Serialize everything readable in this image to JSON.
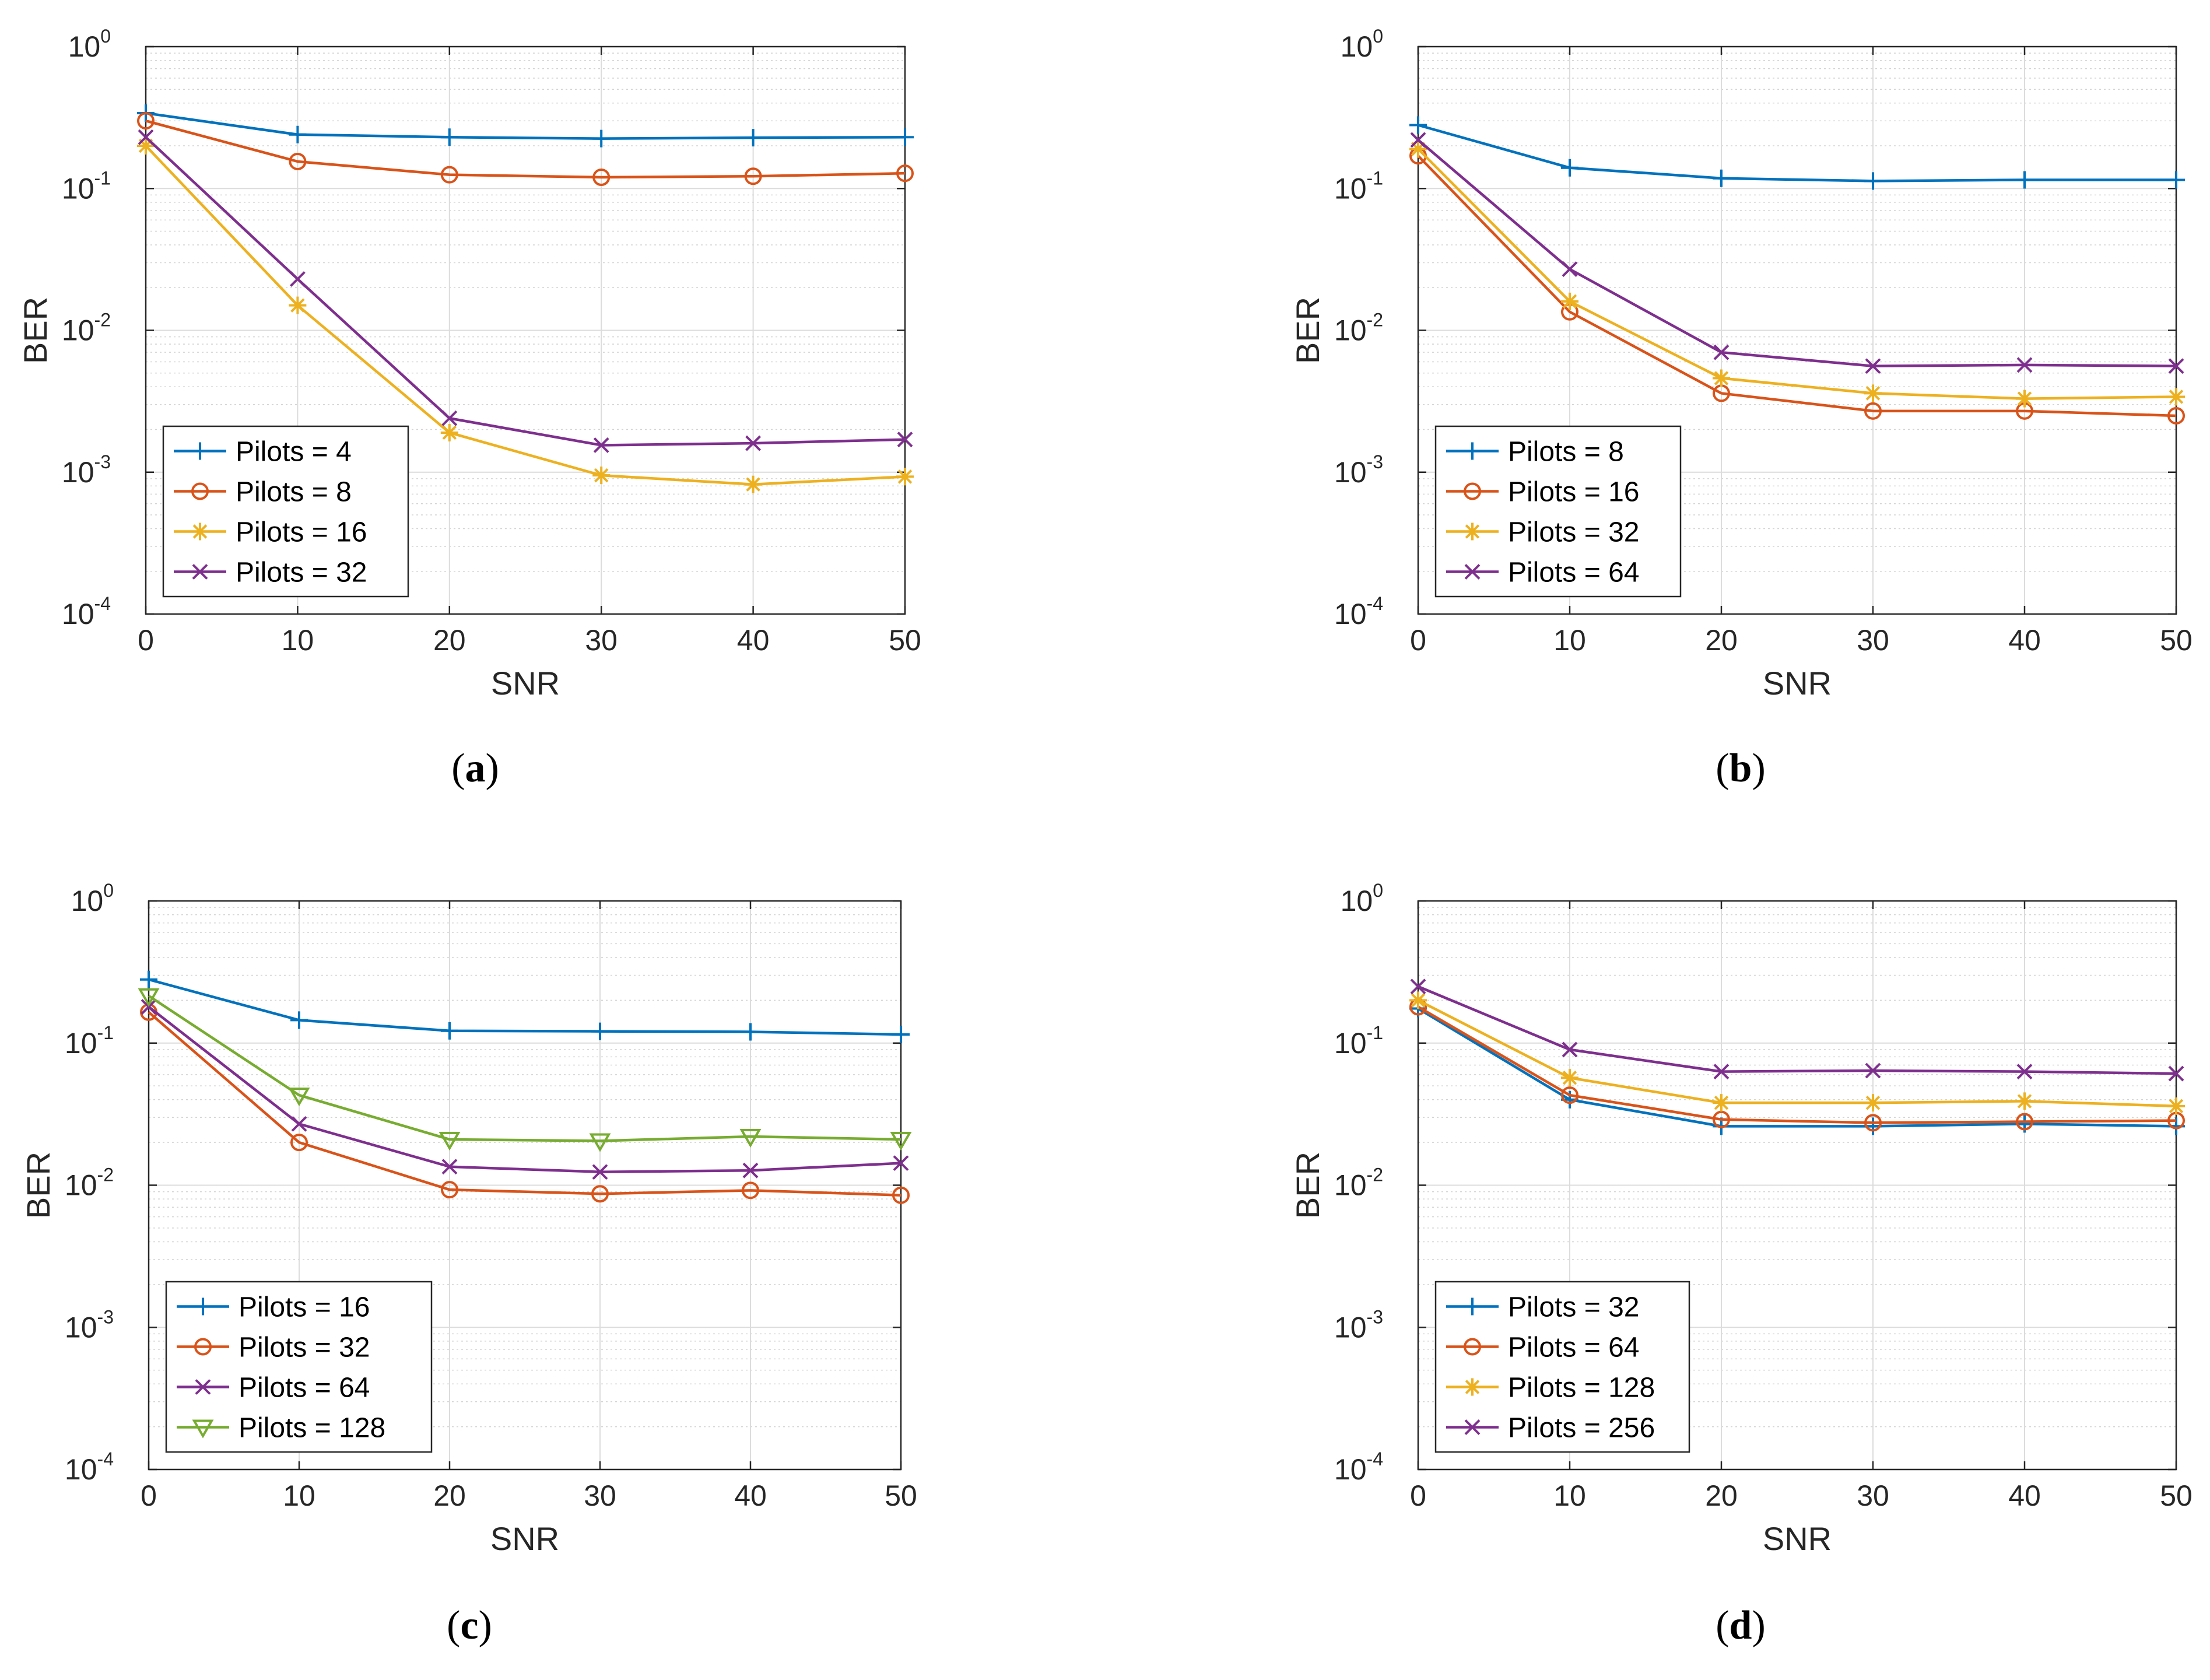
{
  "chart_data": [
    {
      "type": "line",
      "caption": "a",
      "xlabel": "SNR",
      "ylabel": "BER",
      "xlim": [
        0,
        50
      ],
      "ylim": [
        0.0001,
        1
      ],
      "yscale": "log",
      "grid": true,
      "legend_position": "bottom-left",
      "x": [
        0,
        10,
        20,
        30,
        40,
        50
      ],
      "x_ticks": [
        "0",
        "10",
        "20",
        "30",
        "40",
        "50"
      ],
      "y_ticks": [
        {
          "base": "10",
          "exp": "0"
        },
        {
          "base": "10",
          "exp": "-1"
        },
        {
          "base": "10",
          "exp": "-2"
        },
        {
          "base": "10",
          "exp": "-3"
        },
        {
          "base": "10",
          "exp": "-4"
        }
      ],
      "series": [
        {
          "name": "Pilots = 4",
          "color": "#0072BD",
          "marker": "plus",
          "values": [
            0.34,
            0.24,
            0.23,
            0.225,
            0.228,
            0.23
          ]
        },
        {
          "name": "Pilots = 8",
          "color": "#D95319",
          "marker": "circle",
          "values": [
            0.3,
            0.155,
            0.125,
            0.12,
            0.122,
            0.128
          ]
        },
        {
          "name": "Pilots = 16",
          "color": "#EDB120",
          "marker": "asterisk",
          "values": [
            0.2,
            0.015,
            0.0019,
            0.00095,
            0.00082,
            0.00093
          ]
        },
        {
          "name": "Pilots = 32",
          "color": "#7E2F8E",
          "marker": "cross",
          "values": [
            0.23,
            0.023,
            0.0024,
            0.00155,
            0.0016,
            0.0017
          ]
        }
      ]
    },
    {
      "type": "line",
      "caption": "b",
      "xlabel": "SNR",
      "ylabel": "BER",
      "xlim": [
        0,
        50
      ],
      "ylim": [
        0.0001,
        1
      ],
      "yscale": "log",
      "grid": true,
      "legend_position": "bottom-left",
      "x": [
        0,
        10,
        20,
        30,
        40,
        50
      ],
      "x_ticks": [
        "0",
        "10",
        "20",
        "30",
        "40",
        "50"
      ],
      "y_ticks": [
        {
          "base": "10",
          "exp": "0"
        },
        {
          "base": "10",
          "exp": "-1"
        },
        {
          "base": "10",
          "exp": "-2"
        },
        {
          "base": "10",
          "exp": "-3"
        },
        {
          "base": "10",
          "exp": "-4"
        }
      ],
      "series": [
        {
          "name": "Pilots = 8",
          "color": "#0072BD",
          "marker": "plus",
          "values": [
            0.28,
            0.14,
            0.118,
            0.113,
            0.115,
            0.115
          ]
        },
        {
          "name": "Pilots = 16",
          "color": "#D95319",
          "marker": "circle",
          "values": [
            0.17,
            0.0135,
            0.0036,
            0.0027,
            0.0027,
            0.0025
          ]
        },
        {
          "name": "Pilots = 32",
          "color": "#EDB120",
          "marker": "asterisk",
          "values": [
            0.19,
            0.016,
            0.0046,
            0.0036,
            0.0033,
            0.0034
          ]
        },
        {
          "name": "Pilots = 64",
          "color": "#7E2F8E",
          "marker": "cross",
          "values": [
            0.22,
            0.027,
            0.007,
            0.0056,
            0.0057,
            0.0056
          ]
        }
      ]
    },
    {
      "type": "line",
      "caption": "c",
      "xlabel": "SNR",
      "ylabel": "BER",
      "xlim": [
        0,
        50
      ],
      "ylim": [
        0.0001,
        1
      ],
      "yscale": "log",
      "grid": true,
      "legend_position": "bottom-left",
      "x": [
        0,
        10,
        20,
        30,
        40,
        50
      ],
      "x_ticks": [
        "0",
        "10",
        "20",
        "30",
        "40",
        "50"
      ],
      "y_ticks": [
        {
          "base": "10",
          "exp": "0"
        },
        {
          "base": "10",
          "exp": "-1"
        },
        {
          "base": "10",
          "exp": "-2"
        },
        {
          "base": "10",
          "exp": "-3"
        },
        {
          "base": "10",
          "exp": "-4"
        }
      ],
      "series": [
        {
          "name": "Pilots = 16",
          "color": "#0072BD",
          "marker": "plus",
          "values": [
            0.28,
            0.145,
            0.122,
            0.121,
            0.12,
            0.115
          ]
        },
        {
          "name": "Pilots = 32",
          "color": "#D95319",
          "marker": "circle",
          "values": [
            0.165,
            0.02,
            0.0093,
            0.0087,
            0.0092,
            0.0085
          ]
        },
        {
          "name": "Pilots = 64",
          "color": "#7E2F8E",
          "marker": "cross",
          "values": [
            0.18,
            0.027,
            0.0135,
            0.0124,
            0.0127,
            0.0143
          ]
        },
        {
          "name": "Pilots = 128",
          "color": "#77AC30",
          "marker": "triangle-down",
          "values": [
            0.215,
            0.043,
            0.021,
            0.0205,
            0.022,
            0.021
          ]
        }
      ]
    },
    {
      "type": "line",
      "caption": "d",
      "xlabel": "SNR",
      "ylabel": "BER",
      "xlim": [
        0,
        50
      ],
      "ylim": [
        0.0001,
        1
      ],
      "yscale": "log",
      "grid": true,
      "legend_position": "bottom-left",
      "x": [
        0,
        10,
        20,
        30,
        40,
        50
      ],
      "x_ticks": [
        "0",
        "10",
        "20",
        "30",
        "40",
        "50"
      ],
      "y_ticks": [
        {
          "base": "10",
          "exp": "0"
        },
        {
          "base": "10",
          "exp": "-1"
        },
        {
          "base": "10",
          "exp": "-2"
        },
        {
          "base": "10",
          "exp": "-3"
        },
        {
          "base": "10",
          "exp": "-4"
        }
      ],
      "series": [
        {
          "name": "Pilots = 32",
          "color": "#0072BD",
          "marker": "plus",
          "values": [
            0.175,
            0.04,
            0.026,
            0.026,
            0.027,
            0.026
          ]
        },
        {
          "name": "Pilots = 64",
          "color": "#D95319",
          "marker": "circle",
          "values": [
            0.18,
            0.043,
            0.029,
            0.0275,
            0.028,
            0.0285
          ]
        },
        {
          "name": "Pilots = 128",
          "color": "#EDB120",
          "marker": "asterisk",
          "values": [
            0.2,
            0.057,
            0.038,
            0.038,
            0.039,
            0.036
          ]
        },
        {
          "name": "Pilots = 256",
          "color": "#7E2F8E",
          "marker": "cross",
          "values": [
            0.25,
            0.09,
            0.063,
            0.064,
            0.063,
            0.061
          ]
        }
      ]
    }
  ]
}
